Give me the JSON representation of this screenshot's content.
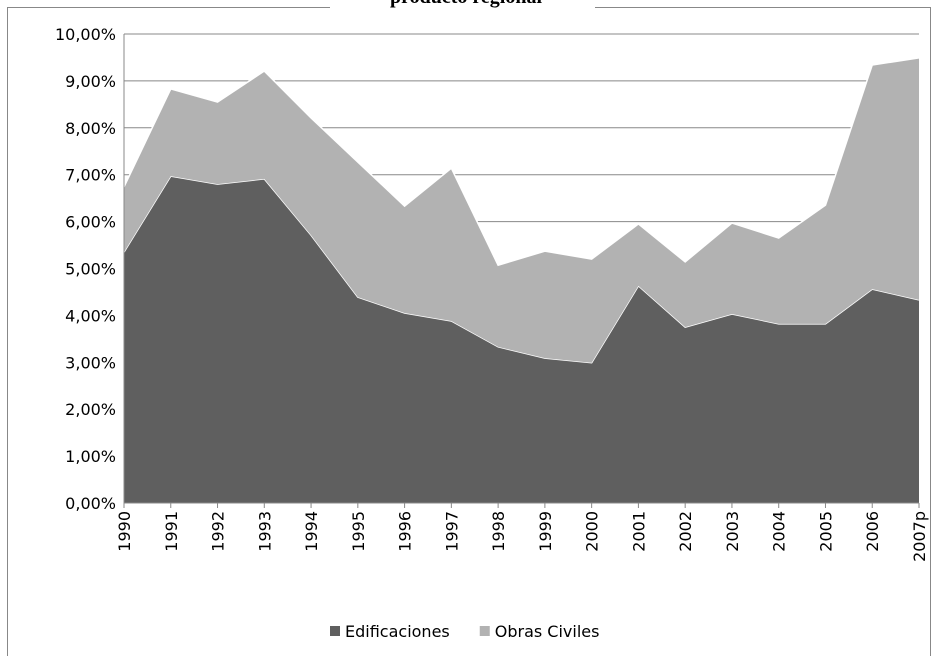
{
  "chart_data": {
    "type": "stacked-area",
    "title": "producto regional",
    "categories": [
      "1990",
      "1991",
      "1992",
      "1993",
      "1994",
      "1995",
      "1996",
      "1997",
      "1998",
      "1999",
      "2000",
      "2001",
      "2002",
      "2003",
      "2004",
      "2005",
      "2006",
      "2007p"
    ],
    "series": [
      {
        "name": "Edificaciones",
        "color": "#5f5f5f",
        "values": [
          5.35,
          6.97,
          6.8,
          6.91,
          5.71,
          4.39,
          4.05,
          3.88,
          3.33,
          3.09,
          2.99,
          4.63,
          3.75,
          4.03,
          3.82,
          3.82,
          4.56,
          4.33
        ]
      },
      {
        "name": "Obras Civiles",
        "color": "#b2b2b2",
        "values": [
          1.39,
          1.86,
          1.75,
          2.3,
          2.5,
          2.88,
          2.28,
          3.26,
          1.74,
          2.28,
          2.21,
          1.32,
          1.39,
          1.94,
          1.83,
          2.53,
          4.78,
          5.16
        ]
      }
    ],
    "ylim": [
      0,
      10
    ],
    "yticks": [
      {
        "value": 0,
        "label": "0,00%"
      },
      {
        "value": 1,
        "label": "1,00%"
      },
      {
        "value": 2,
        "label": "2,00%"
      },
      {
        "value": 3,
        "label": "3,00%"
      },
      {
        "value": 4,
        "label": "4,00%"
      },
      {
        "value": 5,
        "label": "5,00%"
      },
      {
        "value": 6,
        "label": "6,00%"
      },
      {
        "value": 7,
        "label": "7,00%"
      },
      {
        "value": 8,
        "label": "8,00%"
      },
      {
        "value": 9,
        "label": "9,00%"
      },
      {
        "value": 10,
        "label": "10,00%"
      }
    ],
    "grid": true,
    "legend": "bottom"
  }
}
